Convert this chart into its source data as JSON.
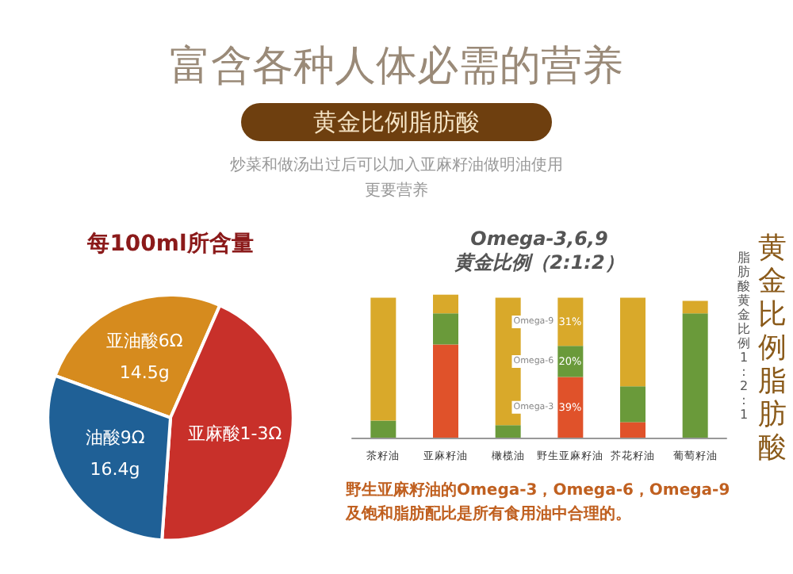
{
  "chart_data": [
    {
      "type": "other",
      "title": "富含各种人体必需的营养",
      "subtitle": "黄金比例脂肪酸",
      "annotations": [
        "炒菜和做汤出过后可以加入亚麻籽油做明油使用",
        "更要营养"
      ]
    },
    {
      "type": "pie",
      "title": "每100ml所含量",
      "categories": [
        "亚油酸6Ω",
        "亚麻酸1-3Ω",
        "油酸9Ω"
      ],
      "values": [
        14.5,
        24.8,
        16.4
      ],
      "colors": [
        "#d68b1e",
        "#c8302a",
        "#1f6096"
      ],
      "value_labels": [
        "14.5g",
        null,
        "16.4g"
      ]
    },
    {
      "type": "bar",
      "title": "Omega-3,6,9\n黄金比例（2:1:2）",
      "categories": [
        "茶籽油",
        "亚麻籽油",
        "橄榄油",
        "野生亚麻籽油",
        "芥花籽油",
        "葡萄籽油"
      ],
      "stacked": true,
      "tick_labels": "x",
      "series": [
        {
          "name": "Omega-3",
          "color": "#e0522a",
          "values": [
            0,
            60,
            0,
            39,
            10,
            0
          ],
          "value_labels": [
            null,
            null,
            null,
            "39%",
            null,
            null
          ]
        },
        {
          "name": "Omega-6",
          "color": "#6a9a3a",
          "values": [
            11,
            20,
            8,
            20,
            23,
            80
          ],
          "value_labels": [
            null,
            null,
            null,
            "20%",
            null,
            null
          ]
        },
        {
          "name": "Omega-9",
          "color": "#d9a92a",
          "values": [
            79,
            12,
            82,
            31,
            57,
            8
          ],
          "value_labels": [
            null,
            null,
            null,
            "31%",
            null,
            null
          ]
        }
      ],
      "annotations": [
        "黄金比例脂肪酸",
        "脂肪酸黄金比例1:2:1",
        "野生亚麻籽油的Omega-3，Omega-6，Omega-9及饱和脂肪配比是所有食用油中合理的。"
      ]
    }
  ]
}
